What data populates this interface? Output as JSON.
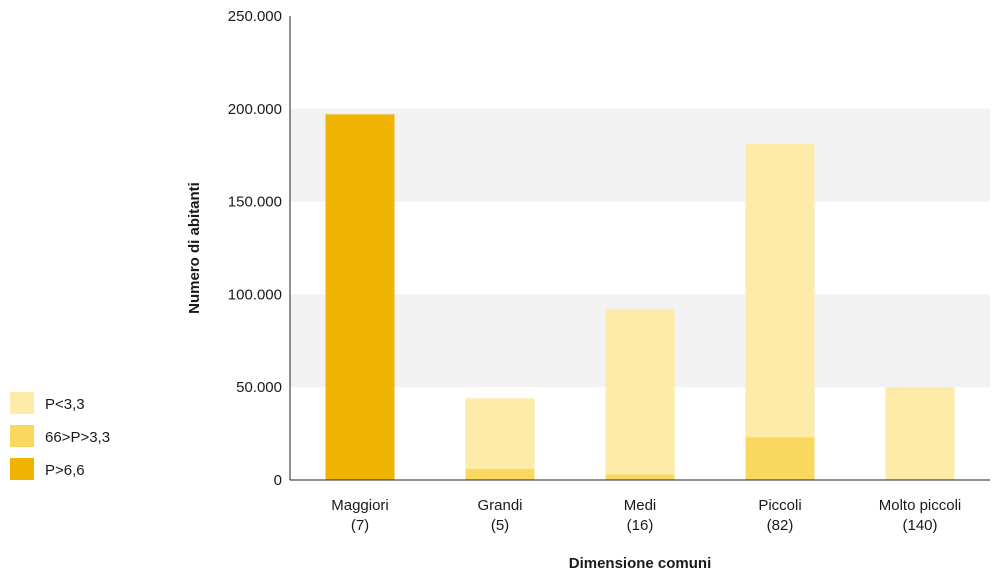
{
  "chart_data": {
    "type": "bar",
    "stacked": true,
    "categories": [
      [
        "Maggiori",
        "(7)"
      ],
      [
        "Grandi",
        "(5)"
      ],
      [
        "Medi",
        "(16)"
      ],
      [
        "Piccoli",
        "(82)"
      ],
      [
        "Molto piccoli",
        "(140)"
      ]
    ],
    "series": [
      {
        "name": "P>6,6",
        "color": "#f0b400",
        "values": [
          197000,
          0,
          0,
          0,
          0
        ]
      },
      {
        "name": "66>P>3,3",
        "color": "#fad75e",
        "values": [
          0,
          6000,
          3000,
          23000,
          0
        ]
      },
      {
        "name": "P<3,3",
        "color": "#feeba8",
        "values": [
          0,
          38000,
          89000,
          158000,
          50000
        ]
      }
    ],
    "legend_order": [
      "P<3,3",
      "66>P>3,3",
      "P>6,6"
    ],
    "legend_placement": "left",
    "xlabel": "Dimensione comuni",
    "ylabel": "Numero di abitanti",
    "ylim": [
      0,
      250000
    ],
    "yticks": [
      0,
      50000,
      100000,
      150000,
      200000,
      250000
    ],
    "ytick_labels": [
      "0",
      "50.000",
      "100.000",
      "150.000",
      "200.000",
      "250.000"
    ],
    "grid": "alternating horizontal bands"
  }
}
